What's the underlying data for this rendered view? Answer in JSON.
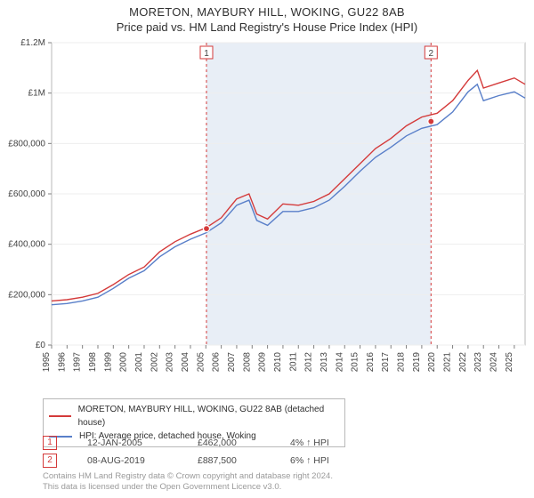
{
  "title_line1": "MORETON, MAYBURY HILL, WOKING, GU22 8AB",
  "title_line2": "Price paid vs. HM Land Registry's House Price Index (HPI)",
  "chart": {
    "type": "line",
    "background_color": "#ffffff",
    "plot_border_color": "#b8b8b8",
    "highlight_band_color": "#e8eef6",
    "highlight_band_from_year": 2005.04,
    "highlight_band_to_year": 2019.6,
    "grid_color": "#eeeeee",
    "x": {
      "lim": [
        1995,
        2025.7
      ],
      "ticks": [
        1995,
        1996,
        1997,
        1998,
        1999,
        2000,
        2001,
        2002,
        2003,
        2004,
        2005,
        2006,
        2007,
        2008,
        2009,
        2010,
        2011,
        2012,
        2013,
        2014,
        2015,
        2016,
        2017,
        2018,
        2019,
        2020,
        2021,
        2022,
        2023,
        2024,
        2025
      ],
      "tick_labels": [
        "1995",
        "1996",
        "1997",
        "1998",
        "1999",
        "2000",
        "2001",
        "2002",
        "2003",
        "2004",
        "2005",
        "2006",
        "2007",
        "2008",
        "2009",
        "2010",
        "2011",
        "2012",
        "2013",
        "2014",
        "2015",
        "2016",
        "2017",
        "2018",
        "2019",
        "2020",
        "2021",
        "2022",
        "2023",
        "2024",
        "2025"
      ],
      "rotation_deg": -90,
      "label_fontsize": 10
    },
    "y": {
      "lim": [
        0,
        1200000
      ],
      "ticks": [
        0,
        200000,
        400000,
        600000,
        800000,
        1000000,
        1200000
      ],
      "tick_labels": [
        "£0",
        "£200,000",
        "£400,000",
        "£600,000",
        "£800,000",
        "£1M",
        "£1.2M"
      ],
      "label_fontsize": 10
    },
    "series": [
      {
        "name": "price_paid",
        "color": "#d43a3a",
        "line_width": 1.4,
        "years": [
          1995,
          1996,
          1997,
          1998,
          1999,
          2000,
          2001,
          2002,
          2003,
          2004,
          2005,
          2006,
          2007,
          2007.8,
          2008.3,
          2009,
          2010,
          2011,
          2012,
          2013,
          2014,
          2015,
          2016,
          2017,
          2018,
          2019,
          2020,
          2021,
          2022,
          2022.6,
          2023,
          2024,
          2025,
          2025.7
        ],
        "values": [
          175000,
          180000,
          190000,
          205000,
          240000,
          280000,
          310000,
          370000,
          410000,
          440000,
          465000,
          505000,
          580000,
          600000,
          520000,
          500000,
          560000,
          555000,
          570000,
          600000,
          660000,
          720000,
          780000,
          820000,
          870000,
          905000,
          920000,
          970000,
          1050000,
          1090000,
          1020000,
          1040000,
          1060000,
          1035000
        ]
      },
      {
        "name": "hpi",
        "color": "#597fc9",
        "line_width": 1.4,
        "years": [
          1995,
          1996,
          1997,
          1998,
          1999,
          2000,
          2001,
          2002,
          2003,
          2004,
          2005,
          2006,
          2007,
          2007.8,
          2008.3,
          2009,
          2010,
          2011,
          2012,
          2013,
          2014,
          2015,
          2016,
          2017,
          2018,
          2019,
          2020,
          2021,
          2022,
          2022.6,
          2023,
          2024,
          2025,
          2025.7
        ],
        "values": [
          160000,
          165000,
          175000,
          190000,
          225000,
          265000,
          295000,
          350000,
          390000,
          420000,
          445000,
          485000,
          555000,
          575000,
          495000,
          475000,
          530000,
          530000,
          545000,
          575000,
          630000,
          690000,
          745000,
          785000,
          830000,
          860000,
          875000,
          925000,
          1005000,
          1035000,
          970000,
          990000,
          1005000,
          980000
        ]
      }
    ],
    "event_markers": [
      {
        "index": 1,
        "year": 2005.04,
        "value": 462000,
        "line_color": "#d43a3a",
        "dash": "3 3"
      },
      {
        "index": 2,
        "year": 2019.6,
        "value": 887500,
        "line_color": "#d43a3a",
        "dash": "3 3"
      }
    ],
    "marker_point_radius": 3.5,
    "marker_point_fill": "#d43a3a",
    "marker_point_stroke": "#ffffff"
  },
  "legend": {
    "series1": "MORETON, MAYBURY HILL, WOKING, GU22 8AB (detached house)",
    "series2": "HPI: Average price, detached house, Woking",
    "series1_color": "#d43a3a",
    "series2_color": "#597fc9",
    "fontsize": 10,
    "border_color": "#b8b8b8"
  },
  "markers_table": {
    "rows": [
      {
        "idx": "1",
        "date": "12-JAN-2005",
        "price": "£462,000",
        "pct": "4% ↑ HPI"
      },
      {
        "idx": "2",
        "date": "08-AUG-2019",
        "price": "£887,500",
        "pct": "6% ↑ HPI"
      }
    ]
  },
  "footer_line1": "Contains HM Land Registry data © Crown copyright and database right 2024.",
  "footer_line2": "This data is licensed under the Open Government Licence v3.0."
}
